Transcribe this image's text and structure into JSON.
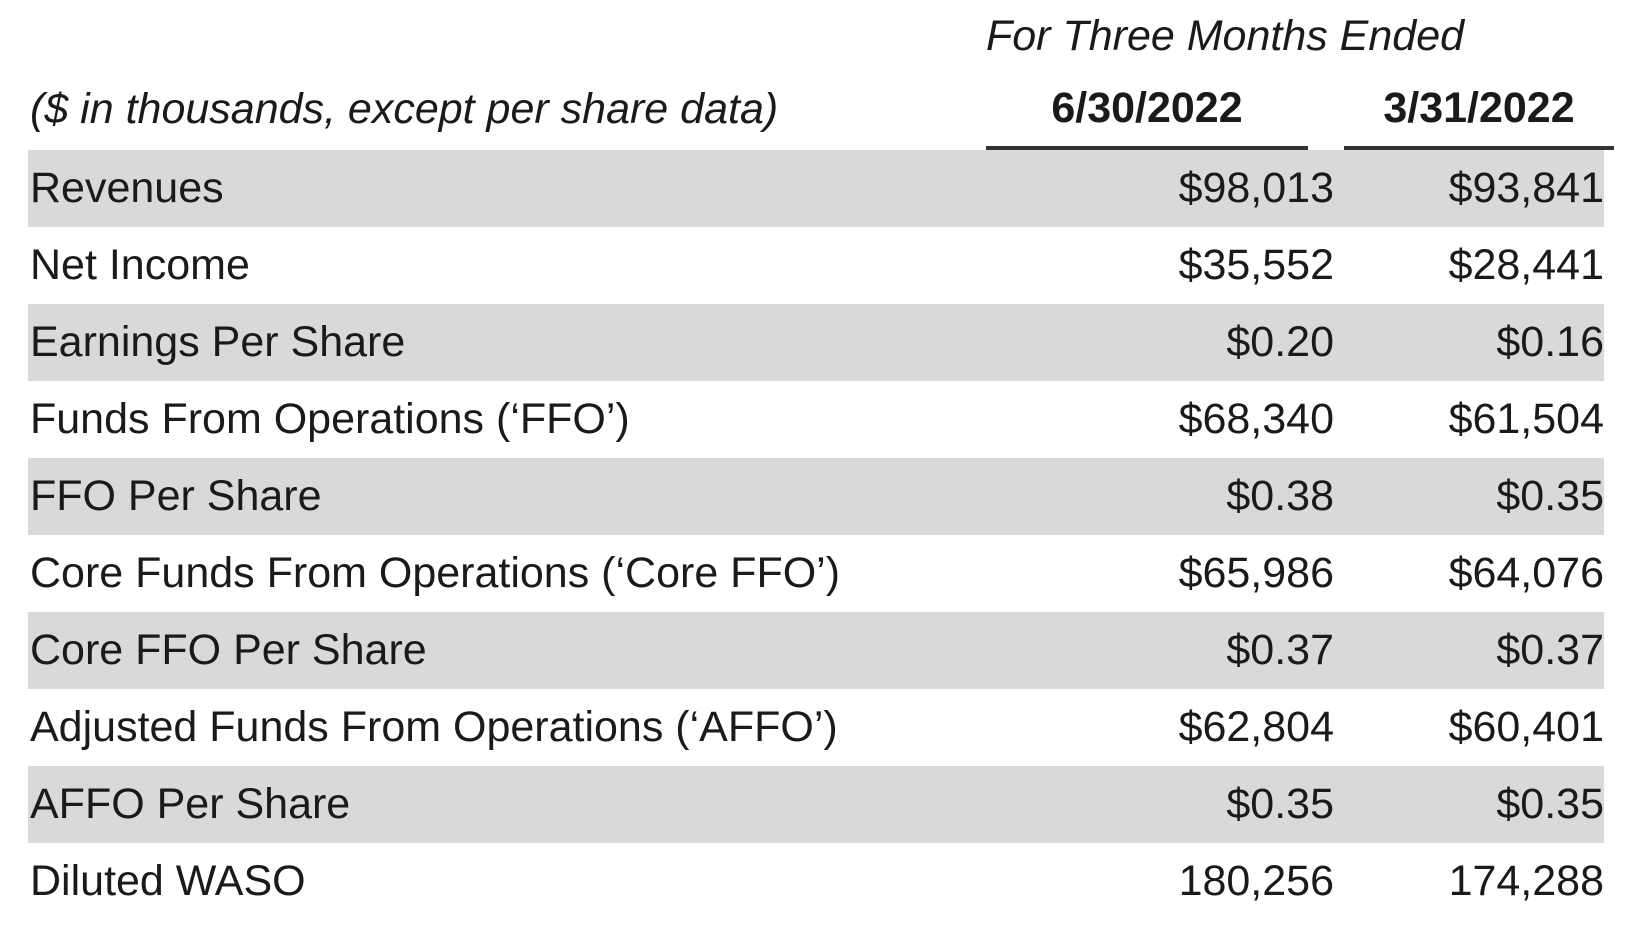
{
  "header": {
    "period": "For Three Months Ended",
    "units_note": "($ in thousands, except per share data)",
    "columns": [
      "6/30/2022",
      "3/31/2022"
    ]
  },
  "table": {
    "rows": [
      {
        "label": "Revenues",
        "values": [
          "$98,013",
          "$93,841"
        ]
      },
      {
        "label": "Net Income",
        "values": [
          "$35,552",
          "$28,441"
        ]
      },
      {
        "label": "Earnings Per Share",
        "values": [
          "$0.20",
          "$0.16"
        ]
      },
      {
        "label": "Funds From Operations (‘FFO’)",
        "values": [
          "$68,340",
          "$61,504"
        ]
      },
      {
        "label": "FFO Per Share",
        "values": [
          "$0.38",
          "$0.35"
        ]
      },
      {
        "label": "Core Funds From Operations (‘Core FFO’)",
        "values": [
          "$65,986",
          "$64,076"
        ]
      },
      {
        "label": "Core FFO Per Share",
        "values": [
          "$0.37",
          "$0.37"
        ]
      },
      {
        "label": "Adjusted Funds From Operations (‘AFFO’)",
        "values": [
          "$62,804",
          "$60,401"
        ]
      },
      {
        "label": "AFFO Per Share",
        "values": [
          "$0.35",
          "$0.35"
        ]
      },
      {
        "label": "Diluted WASO",
        "values": [
          "180,256",
          "174,288"
        ]
      }
    ]
  },
  "colors": {
    "row_shading": "#d9d9d9",
    "rule": "#333333",
    "text": "#1a1a1a"
  }
}
